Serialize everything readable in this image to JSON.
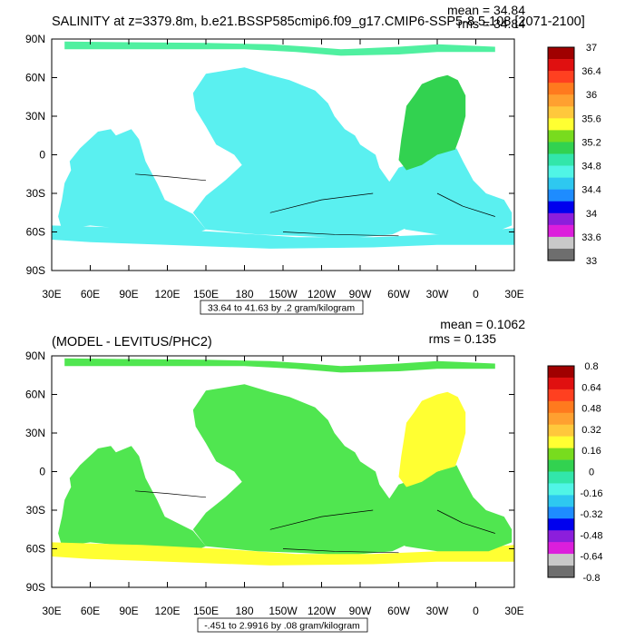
{
  "chart_data": [
    {
      "type": "heatmap",
      "title": "SALINITY at z=3379.8m, b.e21.BSSP585cmip6.f09_g17.CMIP6-SSP5-8.5.108 [2071-2100]",
      "stats": {
        "mean": "mean = 34.84",
        "rms": "rms = 34.84"
      },
      "x_ticks": [
        "30E",
        "60E",
        "90E",
        "120E",
        "150E",
        "180",
        "150W",
        "120W",
        "90W",
        "60W",
        "30W",
        "0",
        "30E"
      ],
      "y_ticks": [
        "90N",
        "60N",
        "30N",
        "0",
        "30S",
        "60S",
        "90S"
      ],
      "xlim": [
        30,
        390
      ],
      "ylim": [
        -90,
        90
      ],
      "range_label": "33.64 to 41.63 by .2 gram/kilogram",
      "colorbar_labels": [
        "37",
        "36.4",
        "36",
        "35.6",
        "35.2",
        "34.8",
        "34.4",
        "34",
        "33.6",
        "33"
      ],
      "colorbar_colors": [
        "#a00000",
        "#e01010",
        "#ff4020",
        "#ff7a1e",
        "#ffa030",
        "#ffc83c",
        "#ffff32",
        "#78dc1e",
        "#32d250",
        "#32e6aa",
        "#50f5e6",
        "#2ec8f0",
        "#1e8cff",
        "#0000ee",
        "#8c1edc",
        "#dc1edc",
        "#c8c8c8",
        "#6e6e6e"
      ],
      "field_colors": {
        "main": "#5af0f0",
        "warm": "#32d250",
        "arctic": "#50f0a0"
      }
    },
    {
      "type": "heatmap",
      "title": "(MODEL - LEVITUS/PHC2)",
      "stats": {
        "mean": "mean = 0.1062",
        "rms": "rms = 0.135"
      },
      "x_ticks": [
        "30E",
        "60E",
        "90E",
        "120E",
        "150E",
        "180",
        "150W",
        "120W",
        "90W",
        "60W",
        "30W",
        "0",
        "30E"
      ],
      "y_ticks": [
        "90N",
        "60N",
        "30N",
        "0",
        "30S",
        "60S",
        "90S"
      ],
      "xlim": [
        30,
        390
      ],
      "ylim": [
        -90,
        90
      ],
      "range_label": "-.451 to 2.9916 by .08 gram/kilogram",
      "colorbar_labels": [
        "0.8",
        "0.64",
        "0.48",
        "0.32",
        "0.16",
        "0",
        "-0.16",
        "-0.32",
        "-0.48",
        "-0.64",
        "-0.8"
      ],
      "colorbar_colors": [
        "#a00000",
        "#e01010",
        "#ff4020",
        "#ff7a1e",
        "#ffa030",
        "#ffc83c",
        "#ffff32",
        "#78dc1e",
        "#32d250",
        "#32e6aa",
        "#50f5e6",
        "#2ec8f0",
        "#1e8cff",
        "#0000ee",
        "#8c1edc",
        "#dc1edc",
        "#c8c8c8",
        "#6e6e6e"
      ],
      "field_colors": {
        "main": "#50e650",
        "warm": "#ffff32",
        "arctic": "#50e650"
      }
    }
  ]
}
